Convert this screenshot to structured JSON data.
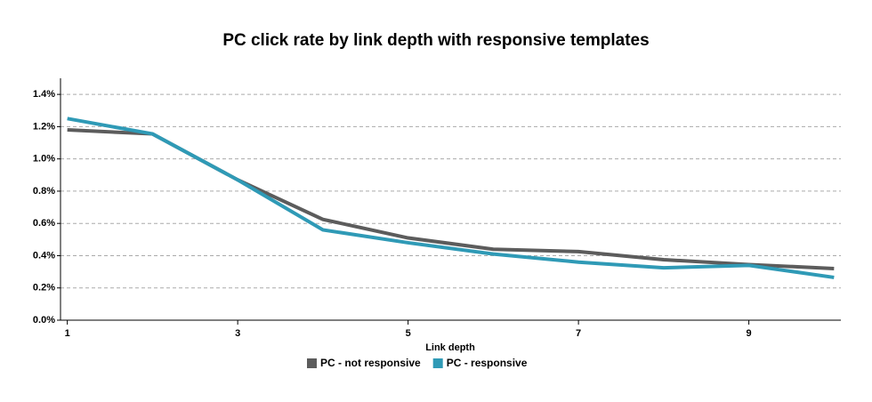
{
  "chart_data": {
    "type": "line",
    "title": "PC click rate by link depth with responsive templates",
    "x_label": "Link depth",
    "x": [
      1,
      2,
      3,
      4,
      5,
      6,
      7,
      8,
      9,
      10
    ],
    "series": [
      {
        "name": "PC - not responsive",
        "color": "#5c5c5c",
        "values": [
          1.18,
          1.155,
          0.87,
          0.625,
          0.51,
          0.44,
          0.425,
          0.375,
          0.345,
          0.32
        ]
      },
      {
        "name": "PC - responsive",
        "color": "#2f9ab6",
        "values": [
          1.25,
          1.155,
          0.87,
          0.56,
          0.48,
          0.41,
          0.36,
          0.325,
          0.34,
          0.265
        ]
      }
    ],
    "xlim": [
      0.92,
      10.08
    ],
    "xticks": [
      1,
      3,
      5,
      7,
      9
    ],
    "ylim": [
      0,
      1.5
    ],
    "yticks": [
      {
        "value": 0,
        "label": "0.0%"
      },
      {
        "value": 0.2,
        "label": "0.2%"
      },
      {
        "value": 0.4,
        "label": "0.4%"
      },
      {
        "value": 0.6,
        "label": "0.6%"
      },
      {
        "value": 0.8,
        "label": "0.8%"
      },
      {
        "value": 1.0,
        "label": "1.0%"
      },
      {
        "value": 1.2,
        "label": "1.2%"
      },
      {
        "value": 1.4,
        "label": "1.4%"
      }
    ],
    "grid": true,
    "legend": "bottom"
  }
}
